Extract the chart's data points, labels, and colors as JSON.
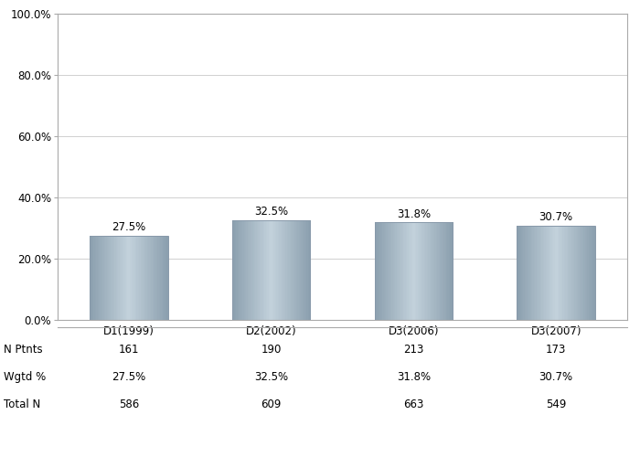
{
  "categories": [
    "D1(1999)",
    "D2(2002)",
    "D3(2006)",
    "D3(2007)"
  ],
  "values": [
    27.5,
    32.5,
    31.8,
    30.7
  ],
  "n_ptnts": [
    161,
    190,
    213,
    173
  ],
  "wgtd_pct": [
    "27.5%",
    "32.5%",
    "31.8%",
    "30.7%"
  ],
  "total_n": [
    586,
    609,
    663,
    549
  ],
  "ylim": [
    0,
    100
  ],
  "yticks": [
    0,
    20,
    40,
    60,
    80,
    100
  ],
  "ytick_labels": [
    "0.0%",
    "20.0%",
    "40.0%",
    "60.0%",
    "80.0%",
    "100.0%"
  ],
  "grid_color": "#d0d0d0",
  "background_color": "#ffffff",
  "text_color": "#000000",
  "label_fontsize": 8.5,
  "tick_fontsize": 8.5,
  "table_fontsize": 8.5,
  "bar_width": 0.55,
  "row_labels": [
    "N Ptnts",
    "Wgtd %",
    "Total N"
  ]
}
